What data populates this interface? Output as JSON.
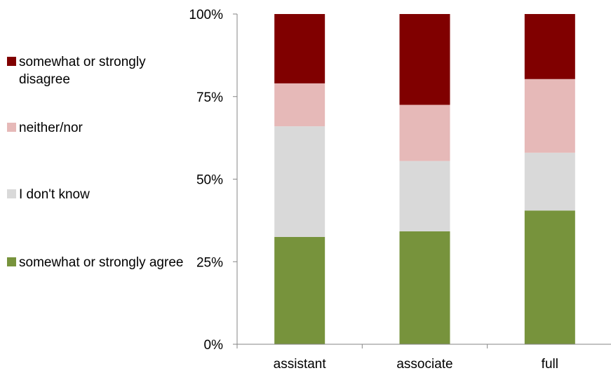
{
  "chart_data": {
    "type": "bar",
    "stacked": true,
    "percent": true,
    "title": "",
    "xlabel": "",
    "ylabel": "",
    "ylim": [
      0,
      100
    ],
    "yticks": [
      "0%",
      "25%",
      "50%",
      "75%",
      "100%"
    ],
    "categories": [
      "assistant",
      "associate",
      "full"
    ],
    "series": [
      {
        "name": "somewhat or strongly agree",
        "color": "#77933c",
        "values": [
          32.5,
          34.2,
          40.5
        ]
      },
      {
        "name": "I don't know",
        "color": "#d9d9d9",
        "values": [
          33.5,
          21.3,
          17.5
        ]
      },
      {
        "name": "neither/nor",
        "color": "#e6b9b8",
        "values": [
          13.0,
          17.0,
          22.3
        ]
      },
      {
        "name": "somewhat or strongly disagree",
        "color": "#800000",
        "values": [
          21.0,
          27.5,
          19.7
        ]
      }
    ],
    "legend_position": "left",
    "grid": false
  }
}
